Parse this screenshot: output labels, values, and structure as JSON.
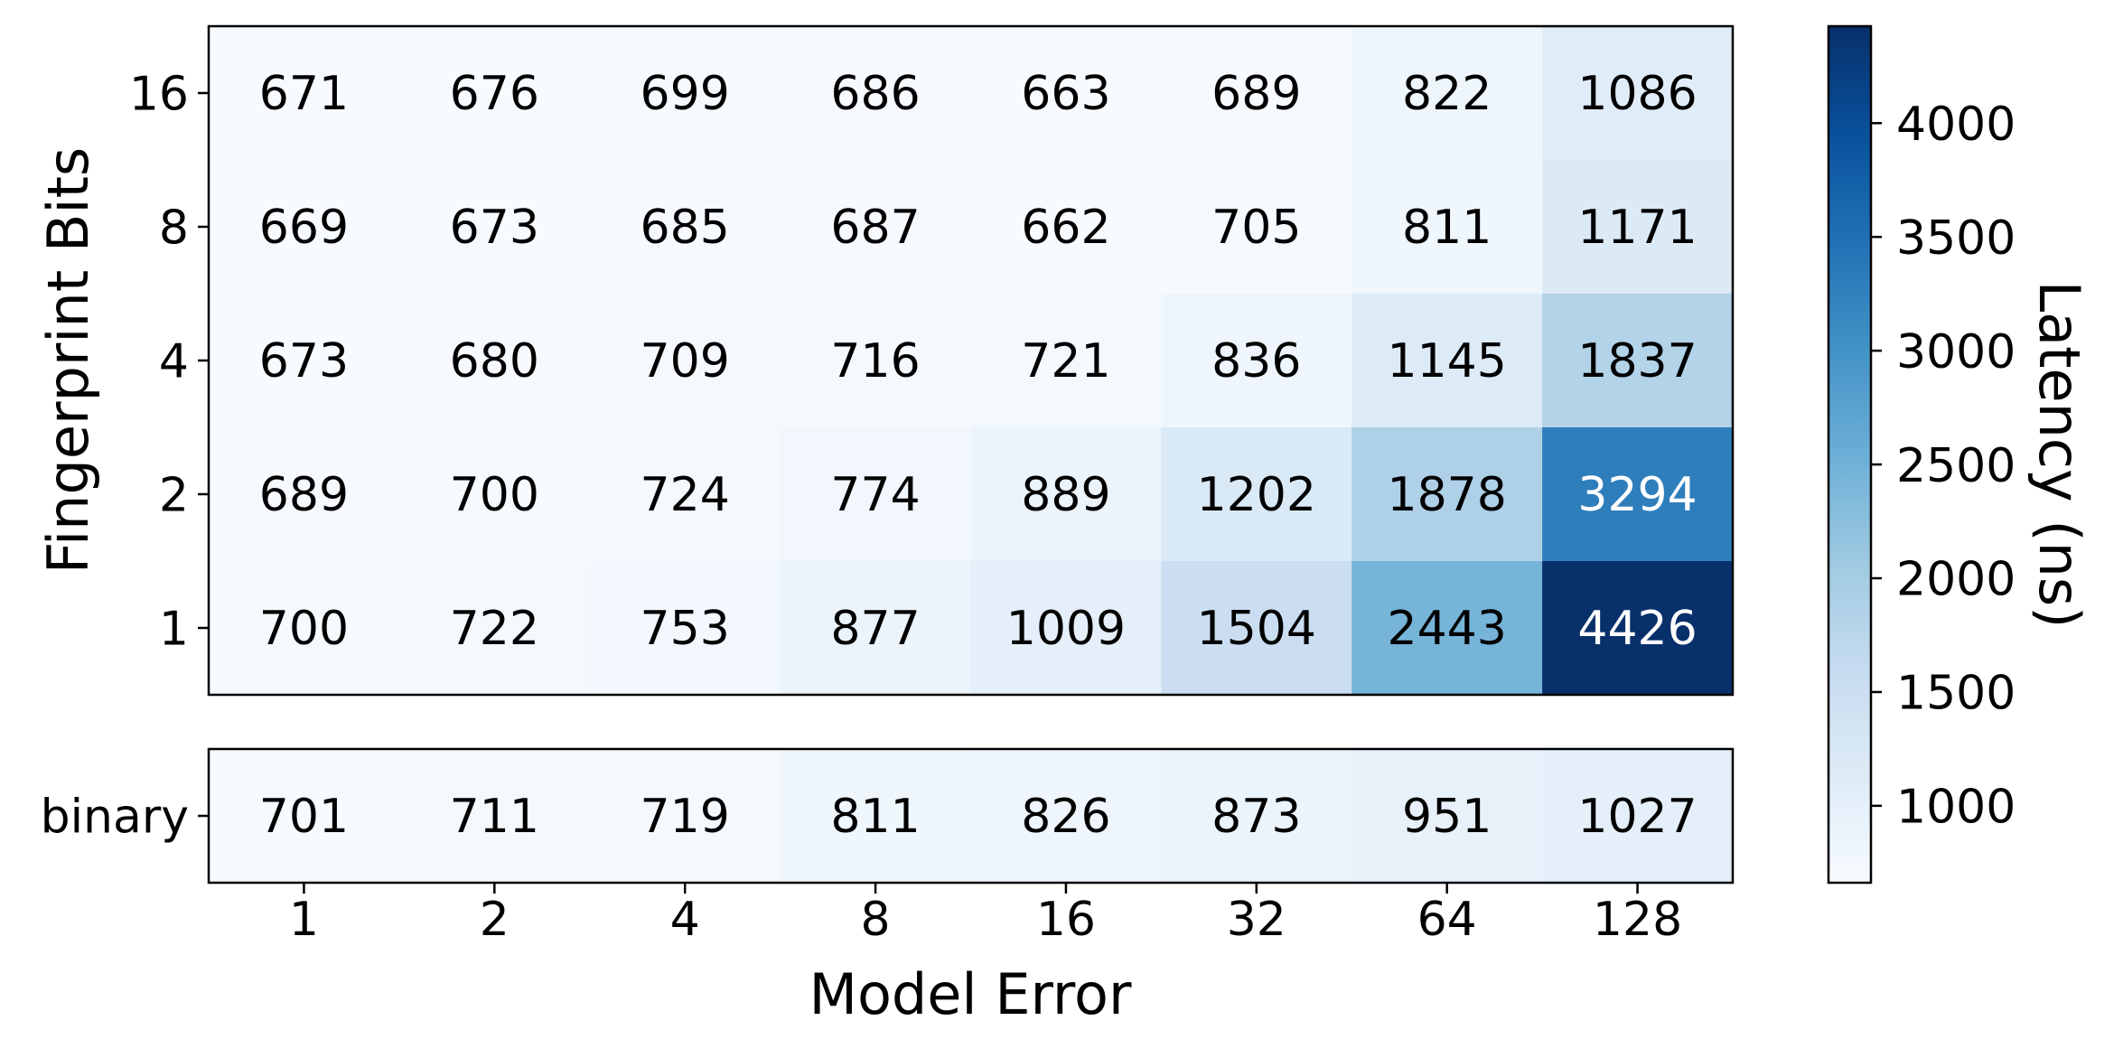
{
  "chart_data": {
    "type": "heatmap",
    "title": "",
    "xlabel": "Model Error",
    "ylabel": "Fingerprint Bits",
    "x_categories": [
      "1",
      "2",
      "4",
      "8",
      "16",
      "32",
      "64",
      "128"
    ],
    "y_categories": [
      "16",
      "8",
      "4",
      "2",
      "1"
    ],
    "values": [
      [
        671,
        676,
        699,
        686,
        663,
        689,
        822,
        1086
      ],
      [
        669,
        673,
        685,
        687,
        662,
        705,
        811,
        1171
      ],
      [
        673,
        680,
        709,
        716,
        721,
        836,
        1145,
        1837
      ],
      [
        689,
        700,
        724,
        774,
        889,
        1202,
        1878,
        3294
      ],
      [
        700,
        722,
        753,
        877,
        1009,
        1504,
        2443,
        4426
      ]
    ],
    "secondary_row": {
      "label": "binary",
      "values": [
        701,
        711,
        719,
        811,
        826,
        873,
        951,
        1027
      ]
    },
    "colorbar": {
      "label": "Latency (ns)",
      "min": 662,
      "max": 4426,
      "ticks": [
        1000,
        1500,
        2000,
        2500,
        3000,
        3500,
        4000
      ],
      "colormap": "Blues",
      "colors": [
        "#f7fbff",
        "#deebf7",
        "#c6dbef",
        "#9ecae1",
        "#6baed6",
        "#4292c6",
        "#2171b5",
        "#08519c",
        "#08306b"
      ]
    },
    "grid": false
  }
}
